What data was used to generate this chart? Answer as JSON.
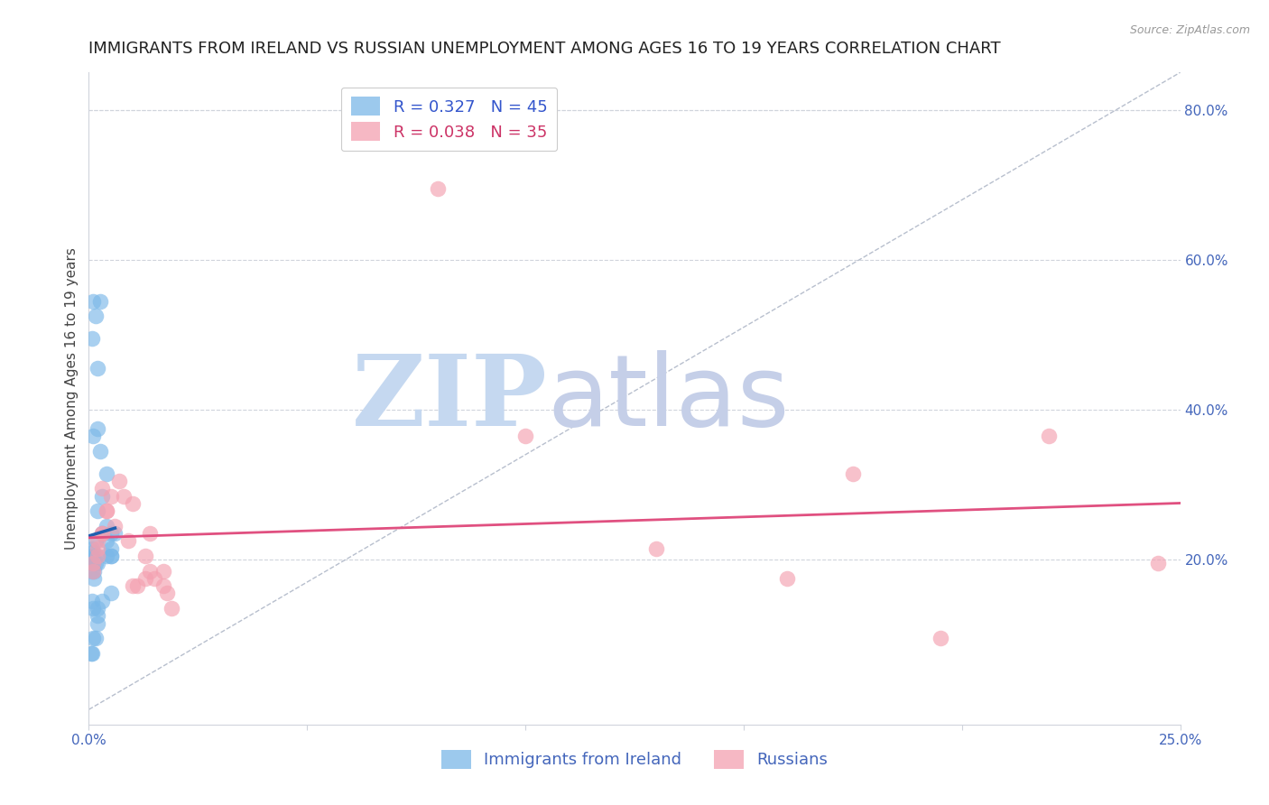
{
  "title": "IMMIGRANTS FROM IRELAND VS RUSSIAN UNEMPLOYMENT AMONG AGES 16 TO 19 YEARS CORRELATION CHART",
  "source": "Source: ZipAtlas.com",
  "ylabel": "Unemployment Among Ages 16 to 19 years",
  "xlim": [
    0.0,
    0.25
  ],
  "ylim": [
    -0.02,
    0.85
  ],
  "xticks": [
    0.0,
    0.05,
    0.1,
    0.15,
    0.2,
    0.25
  ],
  "xticklabels": [
    "0.0%",
    "",
    "",
    "",
    "",
    "25.0%"
  ],
  "yticks_right": [
    0.2,
    0.4,
    0.6,
    0.8
  ],
  "ytick_right_labels": [
    "20.0%",
    "40.0%",
    "60.0%",
    "80.0%"
  ],
  "ireland_R": 0.327,
  "ireland_N": 45,
  "russia_R": 0.038,
  "russia_N": 35,
  "ireland_color": "#7bb8e8",
  "russia_color": "#f4a0b0",
  "ireland_line_color": "#2060b0",
  "russia_line_color": "#e05080",
  "diagonal_color": "#b0b8c8",
  "ireland_scatter_x": [
    0.0005,
    0.0008,
    0.001,
    0.001,
    0.0012,
    0.0012,
    0.0015,
    0.001,
    0.0008,
    0.0018,
    0.002,
    0.0015,
    0.001,
    0.0008,
    0.002,
    0.0025,
    0.001,
    0.002,
    0.001,
    0.0008,
    0.002,
    0.0008,
    0.0015,
    0.001,
    0.0025,
    0.0008,
    0.0015,
    0.002,
    0.003,
    0.004,
    0.005,
    0.004,
    0.003,
    0.004,
    0.005,
    0.006,
    0.005,
    0.004,
    0.005,
    0.005,
    0.003,
    0.002,
    0.001,
    0.0005,
    0.002
  ],
  "ireland_scatter_y": [
    0.195,
    0.205,
    0.21,
    0.2,
    0.185,
    0.175,
    0.195,
    0.195,
    0.215,
    0.205,
    0.195,
    0.225,
    0.195,
    0.185,
    0.265,
    0.345,
    0.365,
    0.375,
    0.135,
    0.145,
    0.455,
    0.495,
    0.525,
    0.545,
    0.545,
    0.075,
    0.095,
    0.115,
    0.285,
    0.245,
    0.215,
    0.205,
    0.235,
    0.225,
    0.205,
    0.235,
    0.235,
    0.315,
    0.205,
    0.155,
    0.145,
    0.135,
    0.095,
    0.075,
    0.125
  ],
  "russia_scatter_x": [
    0.001,
    0.002,
    0.002,
    0.001,
    0.002,
    0.003,
    0.004,
    0.003,
    0.004,
    0.003,
    0.005,
    0.006,
    0.007,
    0.008,
    0.009,
    0.01,
    0.011,
    0.01,
    0.013,
    0.013,
    0.014,
    0.015,
    0.014,
    0.017,
    0.018,
    0.017,
    0.019,
    0.1,
    0.13,
    0.16,
    0.195,
    0.22,
    0.245,
    0.175,
    0.08
  ],
  "russia_scatter_y": [
    0.195,
    0.205,
    0.215,
    0.185,
    0.225,
    0.235,
    0.265,
    0.295,
    0.265,
    0.235,
    0.285,
    0.245,
    0.305,
    0.285,
    0.225,
    0.275,
    0.165,
    0.165,
    0.175,
    0.205,
    0.235,
    0.175,
    0.185,
    0.185,
    0.155,
    0.165,
    0.135,
    0.365,
    0.215,
    0.175,
    0.095,
    0.365,
    0.195,
    0.315,
    0.695
  ],
  "watermark_zip": "ZIP",
  "watermark_atlas": "atlas",
  "watermark_color_zip": "#c5d8f0",
  "watermark_color_atlas": "#c5cfe8",
  "background_color": "#ffffff",
  "title_fontsize": 13,
  "axis_label_fontsize": 11,
  "tick_fontsize": 11,
  "legend_fontsize": 13
}
